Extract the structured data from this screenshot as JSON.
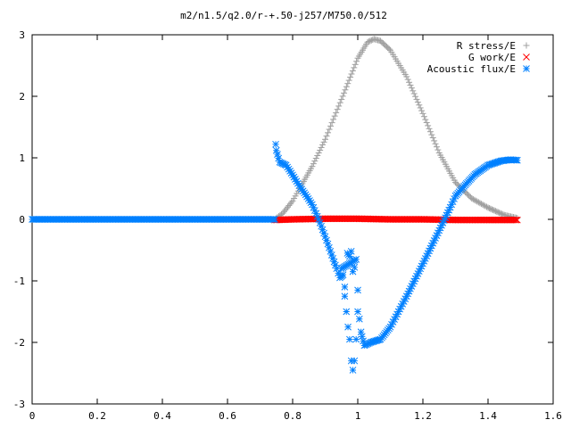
{
  "chart_data": {
    "type": "scatter",
    "title": "m2/n1.5/q2.0/r-+.50-j257/M750.0/512",
    "xlabel": "",
    "ylabel": "",
    "xlim": [
      0,
      1.6
    ],
    "ylim": [
      -3,
      3
    ],
    "xticks": [
      "0",
      "0.2",
      "0.4",
      "0.6",
      "0.8",
      "1",
      "1.2",
      "1.4",
      "1.6"
    ],
    "yticks": [
      "3",
      "2",
      "1",
      "0",
      "-1",
      "-2",
      "-3"
    ],
    "legend_position": "top-right",
    "grid": false,
    "series": [
      {
        "name": "R stress/E",
        "marker": "plus",
        "color": "#a0a0a0",
        "points": [
          [
            0.0,
            0.0
          ],
          [
            0.2,
            0.0
          ],
          [
            0.4,
            0.0
          ],
          [
            0.6,
            0.0
          ],
          [
            0.745,
            0.0
          ],
          [
            0.77,
            0.1
          ],
          [
            0.8,
            0.3
          ],
          [
            0.83,
            0.58
          ],
          [
            0.86,
            0.86
          ],
          [
            0.9,
            1.3
          ],
          [
            0.95,
            1.95
          ],
          [
            1.0,
            2.62
          ],
          [
            1.03,
            2.88
          ],
          [
            1.05,
            2.93
          ],
          [
            1.07,
            2.9
          ],
          [
            1.1,
            2.75
          ],
          [
            1.15,
            2.32
          ],
          [
            1.2,
            1.72
          ],
          [
            1.25,
            1.08
          ],
          [
            1.3,
            0.6
          ],
          [
            1.35,
            0.34
          ],
          [
            1.4,
            0.19
          ],
          [
            1.45,
            0.07
          ],
          [
            1.49,
            0.02
          ]
        ]
      },
      {
        "name": "G work/E",
        "marker": "cross",
        "color": "#ff0000",
        "points": [
          [
            0.745,
            -0.01
          ],
          [
            0.8,
            0.0
          ],
          [
            0.9,
            0.01
          ],
          [
            1.0,
            0.01
          ],
          [
            1.1,
            0.0
          ],
          [
            1.2,
            0.0
          ],
          [
            1.3,
            -0.01
          ],
          [
            1.4,
            -0.01
          ],
          [
            1.49,
            -0.01
          ]
        ]
      },
      {
        "name": "Acoustic flux/E",
        "marker": "asterisk",
        "color": "#0080ff",
        "points": [
          [
            0.0,
            0.0
          ],
          [
            0.2,
            0.0
          ],
          [
            0.4,
            0.0
          ],
          [
            0.6,
            0.0
          ],
          [
            0.745,
            0.0
          ],
          [
            0.748,
            1.22
          ],
          [
            0.75,
            1.12
          ],
          [
            0.76,
            0.93
          ],
          [
            0.78,
            0.88
          ],
          [
            0.8,
            0.72
          ],
          [
            0.82,
            0.55
          ],
          [
            0.84,
            0.4
          ],
          [
            0.86,
            0.24
          ],
          [
            0.88,
            0.0
          ],
          [
            0.9,
            -0.28
          ],
          [
            0.92,
            -0.58
          ],
          [
            0.935,
            -0.8
          ],
          [
            0.945,
            -0.95
          ],
          [
            0.955,
            -0.9
          ],
          [
            0.96,
            -1.1
          ],
          [
            0.965,
            -1.5
          ],
          [
            0.97,
            -1.75
          ],
          [
            0.975,
            -1.95
          ],
          [
            0.98,
            -2.3
          ],
          [
            0.985,
            -2.45
          ],
          [
            0.99,
            -2.3
          ],
          [
            0.995,
            -1.95
          ],
          [
            1.0,
            -1.5
          ],
          [
            1.005,
            -1.62
          ],
          [
            1.01,
            -1.83
          ],
          [
            1.02,
            -2.05
          ],
          [
            1.04,
            -2.0
          ],
          [
            1.07,
            -1.95
          ],
          [
            1.1,
            -1.75
          ],
          [
            1.15,
            -1.25
          ],
          [
            1.2,
            -0.72
          ],
          [
            1.25,
            -0.18
          ],
          [
            1.28,
            0.15
          ],
          [
            1.3,
            0.38
          ],
          [
            1.33,
            0.56
          ],
          [
            1.36,
            0.73
          ],
          [
            1.4,
            0.88
          ],
          [
            1.44,
            0.95
          ],
          [
            1.47,
            0.97
          ],
          [
            1.49,
            0.96
          ],
          [
            0.968,
            -0.55
          ],
          [
            0.975,
            -0.6
          ],
          [
            0.98,
            -0.52
          ],
          [
            0.985,
            -0.85
          ],
          [
            0.99,
            -0.78
          ],
          [
            0.96,
            -1.25
          ],
          [
            0.95,
            -0.8
          ],
          [
            0.995,
            -0.65
          ],
          [
            1.0,
            -1.15
          ]
        ]
      }
    ]
  }
}
